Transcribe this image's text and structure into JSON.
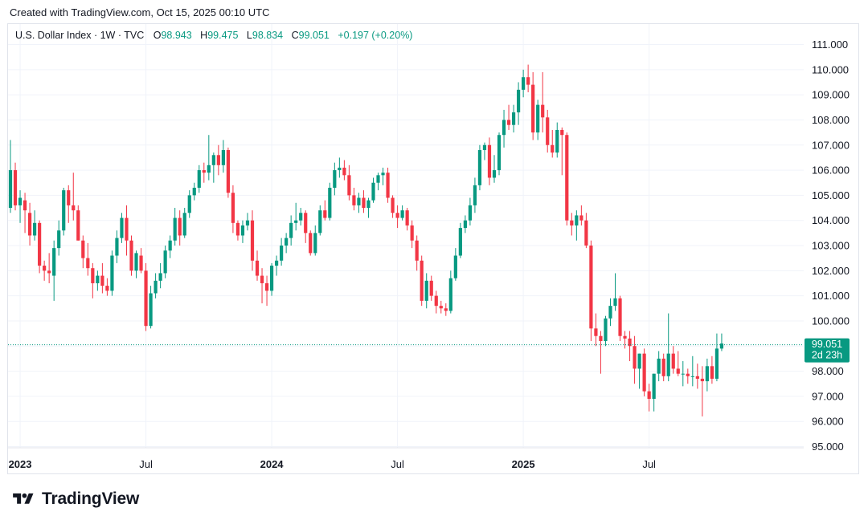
{
  "header": {
    "created_text": "Created with TradingView.com, Oct 15, 2025 00:10 UTC"
  },
  "legend": {
    "title": "U.S. Dollar Index · 1W · TVC",
    "o_label": "O",
    "o_value": "98.943",
    "h_label": "H",
    "h_value": "99.475",
    "l_label": "L",
    "l_value": "98.834",
    "c_label": "C",
    "c_value": "99.051",
    "change": "+0.197 (+0.20%)"
  },
  "price_badge": {
    "price": "99.051",
    "countdown": "2d 23h"
  },
  "footer": {
    "brand": "TradingView"
  },
  "colors": {
    "up": "#089981",
    "down": "#f23645",
    "grid": "#f0f3fa",
    "text": "#131722"
  },
  "chart_data": {
    "type": "candlestick",
    "title": "U.S. Dollar Index · 1W · TVC",
    "ylim": [
      94.3,
      111.7
    ],
    "y_ticks": [
      "95.000",
      "96.000",
      "97.000",
      "98.000",
      "100.000",
      "101.000",
      "102.000",
      "103.000",
      "104.000",
      "105.000",
      "106.000",
      "107.000",
      "108.000",
      "109.000",
      "110.000",
      "111.000"
    ],
    "x_ticks": [
      {
        "label": "2023",
        "bold": true,
        "index": 2
      },
      {
        "label": "Jul",
        "bold": false,
        "index": 28
      },
      {
        "label": "2024",
        "bold": true,
        "index": 54
      },
      {
        "label": "Jul",
        "bold": false,
        "index": 80
      },
      {
        "label": "2025",
        "bold": true,
        "index": 106
      },
      {
        "label": "Jul",
        "bold": false,
        "index": 132
      }
    ],
    "last_close": 99.051,
    "candles": [
      {
        "o": 104.5,
        "h": 107.2,
        "l": 104.3,
        "c": 106.0
      },
      {
        "o": 106.0,
        "h": 106.3,
        "l": 104.4,
        "c": 104.6
      },
      {
        "o": 104.6,
        "h": 105.2,
        "l": 103.9,
        "c": 104.9
      },
      {
        "o": 104.8,
        "h": 105.1,
        "l": 103.5,
        "c": 104.4
      },
      {
        "o": 104.3,
        "h": 104.7,
        "l": 103.0,
        "c": 103.4
      },
      {
        "o": 103.4,
        "h": 104.4,
        "l": 103.2,
        "c": 103.9
      },
      {
        "o": 103.9,
        "h": 104.0,
        "l": 101.9,
        "c": 102.2
      },
      {
        "o": 102.2,
        "h": 102.4,
        "l": 101.6,
        "c": 102.0
      },
      {
        "o": 102.0,
        "h": 102.7,
        "l": 101.5,
        "c": 101.9
      },
      {
        "o": 101.8,
        "h": 103.2,
        "l": 100.8,
        "c": 102.9
      },
      {
        "o": 102.9,
        "h": 104.0,
        "l": 102.6,
        "c": 103.6
      },
      {
        "o": 103.6,
        "h": 105.3,
        "l": 103.4,
        "c": 105.2
      },
      {
        "o": 105.2,
        "h": 105.4,
        "l": 103.9,
        "c": 104.6
      },
      {
        "o": 104.6,
        "h": 105.9,
        "l": 104.0,
        "c": 104.4
      },
      {
        "o": 104.4,
        "h": 104.6,
        "l": 103.2,
        "c": 103.2
      },
      {
        "o": 103.2,
        "h": 103.4,
        "l": 102.1,
        "c": 102.5
      },
      {
        "o": 102.5,
        "h": 103.1,
        "l": 101.8,
        "c": 102.1
      },
      {
        "o": 102.1,
        "h": 102.3,
        "l": 100.9,
        "c": 101.5
      },
      {
        "o": 101.5,
        "h": 102.0,
        "l": 101.2,
        "c": 101.8
      },
      {
        "o": 101.8,
        "h": 102.3,
        "l": 101.1,
        "c": 101.4
      },
      {
        "o": 101.4,
        "h": 101.7,
        "l": 101.0,
        "c": 101.2
      },
      {
        "o": 101.2,
        "h": 102.8,
        "l": 101.0,
        "c": 102.6
      },
      {
        "o": 102.6,
        "h": 103.6,
        "l": 102.3,
        "c": 103.3
      },
      {
        "o": 103.3,
        "h": 104.3,
        "l": 103.1,
        "c": 104.1
      },
      {
        "o": 104.1,
        "h": 104.6,
        "l": 102.6,
        "c": 103.2
      },
      {
        "o": 103.2,
        "h": 103.4,
        "l": 101.8,
        "c": 102.0
      },
      {
        "o": 102.0,
        "h": 102.8,
        "l": 101.7,
        "c": 102.7
      },
      {
        "o": 102.6,
        "h": 102.9,
        "l": 101.9,
        "c": 102.0
      },
      {
        "o": 102.0,
        "h": 102.3,
        "l": 99.6,
        "c": 99.8
      },
      {
        "o": 99.8,
        "h": 101.4,
        "l": 99.7,
        "c": 101.1
      },
      {
        "o": 101.1,
        "h": 101.9,
        "l": 100.9,
        "c": 101.6
      },
      {
        "o": 101.6,
        "h": 102.3,
        "l": 101.3,
        "c": 101.9
      },
      {
        "o": 101.9,
        "h": 103.0,
        "l": 101.7,
        "c": 102.8
      },
      {
        "o": 102.8,
        "h": 103.4,
        "l": 102.5,
        "c": 103.2
      },
      {
        "o": 103.2,
        "h": 104.5,
        "l": 103.0,
        "c": 104.1
      },
      {
        "o": 104.1,
        "h": 104.4,
        "l": 103.0,
        "c": 103.4
      },
      {
        "o": 103.4,
        "h": 104.5,
        "l": 103.3,
        "c": 104.3
      },
      {
        "o": 104.3,
        "h": 105.2,
        "l": 104.1,
        "c": 105.0
      },
      {
        "o": 105.0,
        "h": 105.5,
        "l": 104.8,
        "c": 105.3
      },
      {
        "o": 105.3,
        "h": 106.2,
        "l": 105.1,
        "c": 106.0
      },
      {
        "o": 106.0,
        "h": 106.3,
        "l": 105.5,
        "c": 105.9
      },
      {
        "o": 105.9,
        "h": 107.4,
        "l": 105.6,
        "c": 106.2
      },
      {
        "o": 106.2,
        "h": 106.7,
        "l": 105.5,
        "c": 106.6
      },
      {
        "o": 106.6,
        "h": 107.0,
        "l": 105.8,
        "c": 106.2
      },
      {
        "o": 106.2,
        "h": 107.2,
        "l": 105.9,
        "c": 106.8
      },
      {
        "o": 106.8,
        "h": 106.9,
        "l": 104.9,
        "c": 105.1
      },
      {
        "o": 105.1,
        "h": 105.4,
        "l": 103.5,
        "c": 103.9
      },
      {
        "o": 103.9,
        "h": 104.0,
        "l": 103.2,
        "c": 103.4
      },
      {
        "o": 103.4,
        "h": 104.0,
        "l": 103.1,
        "c": 103.8
      },
      {
        "o": 103.8,
        "h": 104.3,
        "l": 103.6,
        "c": 104.0
      },
      {
        "o": 104.0,
        "h": 104.4,
        "l": 102.0,
        "c": 102.4
      },
      {
        "o": 102.4,
        "h": 102.8,
        "l": 101.6,
        "c": 101.8
      },
      {
        "o": 101.8,
        "h": 102.1,
        "l": 100.7,
        "c": 101.5
      },
      {
        "o": 101.5,
        "h": 101.8,
        "l": 100.6,
        "c": 101.2
      },
      {
        "o": 101.2,
        "h": 102.3,
        "l": 101.0,
        "c": 102.2
      },
      {
        "o": 102.2,
        "h": 102.6,
        "l": 101.8,
        "c": 102.4
      },
      {
        "o": 102.4,
        "h": 103.3,
        "l": 102.2,
        "c": 103.0
      },
      {
        "o": 103.0,
        "h": 103.5,
        "l": 102.7,
        "c": 103.3
      },
      {
        "o": 103.3,
        "h": 104.2,
        "l": 103.0,
        "c": 103.9
      },
      {
        "o": 103.9,
        "h": 104.7,
        "l": 103.6,
        "c": 104.0
      },
      {
        "o": 104.0,
        "h": 104.5,
        "l": 103.8,
        "c": 104.3
      },
      {
        "o": 104.3,
        "h": 104.4,
        "l": 103.1,
        "c": 103.5
      },
      {
        "o": 103.5,
        "h": 103.6,
        "l": 102.6,
        "c": 102.7
      },
      {
        "o": 102.7,
        "h": 103.8,
        "l": 102.6,
        "c": 103.5
      },
      {
        "o": 103.5,
        "h": 104.6,
        "l": 103.4,
        "c": 104.4
      },
      {
        "o": 104.4,
        "h": 104.8,
        "l": 104.0,
        "c": 104.1
      },
      {
        "o": 104.1,
        "h": 105.5,
        "l": 104.0,
        "c": 105.3
      },
      {
        "o": 105.3,
        "h": 106.3,
        "l": 105.0,
        "c": 106.0
      },
      {
        "o": 106.0,
        "h": 106.5,
        "l": 105.7,
        "c": 106.1
      },
      {
        "o": 106.1,
        "h": 106.4,
        "l": 105.6,
        "c": 105.8
      },
      {
        "o": 105.8,
        "h": 106.2,
        "l": 104.8,
        "c": 105.0
      },
      {
        "o": 105.0,
        "h": 105.3,
        "l": 104.4,
        "c": 104.6
      },
      {
        "o": 104.6,
        "h": 105.1,
        "l": 104.3,
        "c": 104.9
      },
      {
        "o": 104.9,
        "h": 105.2,
        "l": 104.3,
        "c": 104.5
      },
      {
        "o": 104.5,
        "h": 104.9,
        "l": 104.1,
        "c": 104.8
      },
      {
        "o": 104.8,
        "h": 105.7,
        "l": 104.7,
        "c": 105.5
      },
      {
        "o": 105.5,
        "h": 105.9,
        "l": 105.2,
        "c": 105.8
      },
      {
        "o": 105.8,
        "h": 106.1,
        "l": 105.4,
        "c": 105.9
      },
      {
        "o": 105.9,
        "h": 106.1,
        "l": 104.7,
        "c": 104.9
      },
      {
        "o": 104.9,
        "h": 105.0,
        "l": 104.1,
        "c": 104.3
      },
      {
        "o": 104.3,
        "h": 104.6,
        "l": 103.7,
        "c": 104.1
      },
      {
        "o": 104.1,
        "h": 104.6,
        "l": 104.0,
        "c": 104.4
      },
      {
        "o": 104.4,
        "h": 104.5,
        "l": 103.6,
        "c": 103.8
      },
      {
        "o": 103.8,
        "h": 104.0,
        "l": 102.9,
        "c": 103.2
      },
      {
        "o": 103.2,
        "h": 103.4,
        "l": 102.0,
        "c": 102.4
      },
      {
        "o": 102.4,
        "h": 102.6,
        "l": 100.6,
        "c": 100.8
      },
      {
        "o": 100.8,
        "h": 101.9,
        "l": 100.5,
        "c": 101.6
      },
      {
        "o": 101.6,
        "h": 101.8,
        "l": 100.8,
        "c": 101.0
      },
      {
        "o": 101.0,
        "h": 101.2,
        "l": 100.3,
        "c": 100.6
      },
      {
        "o": 100.6,
        "h": 100.8,
        "l": 100.3,
        "c": 100.5
      },
      {
        "o": 100.5,
        "h": 100.7,
        "l": 100.2,
        "c": 100.4
      },
      {
        "o": 100.4,
        "h": 102.0,
        "l": 100.3,
        "c": 101.7
      },
      {
        "o": 101.7,
        "h": 102.9,
        "l": 101.6,
        "c": 102.6
      },
      {
        "o": 102.6,
        "h": 103.9,
        "l": 102.5,
        "c": 103.7
      },
      {
        "o": 103.7,
        "h": 104.2,
        "l": 103.5,
        "c": 104.0
      },
      {
        "o": 104.0,
        "h": 104.9,
        "l": 103.8,
        "c": 104.6
      },
      {
        "o": 104.6,
        "h": 105.7,
        "l": 104.3,
        "c": 105.4
      },
      {
        "o": 105.4,
        "h": 107.0,
        "l": 105.2,
        "c": 106.8
      },
      {
        "o": 106.8,
        "h": 107.1,
        "l": 106.4,
        "c": 107.0
      },
      {
        "o": 107.0,
        "h": 107.3,
        "l": 105.4,
        "c": 105.7
      },
      {
        "o": 105.7,
        "h": 106.6,
        "l": 105.5,
        "c": 106.0
      },
      {
        "o": 106.0,
        "h": 107.5,
        "l": 105.8,
        "c": 107.4
      },
      {
        "o": 107.4,
        "h": 108.4,
        "l": 106.9,
        "c": 108.0
      },
      {
        "o": 108.0,
        "h": 108.6,
        "l": 107.6,
        "c": 107.8
      },
      {
        "o": 107.8,
        "h": 108.6,
        "l": 107.5,
        "c": 108.3
      },
      {
        "o": 108.3,
        "h": 109.5,
        "l": 107.8,
        "c": 109.2
      },
      {
        "o": 109.2,
        "h": 110.0,
        "l": 108.9,
        "c": 109.7
      },
      {
        "o": 109.7,
        "h": 110.2,
        "l": 109.1,
        "c": 109.4
      },
      {
        "o": 109.4,
        "h": 109.9,
        "l": 107.2,
        "c": 107.5
      },
      {
        "o": 107.5,
        "h": 108.8,
        "l": 107.2,
        "c": 108.6
      },
      {
        "o": 108.6,
        "h": 109.9,
        "l": 107.5,
        "c": 108.1
      },
      {
        "o": 108.1,
        "h": 108.4,
        "l": 106.7,
        "c": 107.0
      },
      {
        "o": 107.0,
        "h": 107.6,
        "l": 106.5,
        "c": 106.7
      },
      {
        "o": 106.7,
        "h": 107.9,
        "l": 106.5,
        "c": 107.6
      },
      {
        "o": 107.6,
        "h": 107.7,
        "l": 105.8,
        "c": 107.4
      },
      {
        "o": 107.4,
        "h": 107.5,
        "l": 103.8,
        "c": 104.0
      },
      {
        "o": 104.0,
        "h": 104.3,
        "l": 103.4,
        "c": 103.8
      },
      {
        "o": 103.8,
        "h": 104.4,
        "l": 103.2,
        "c": 104.2
      },
      {
        "o": 104.2,
        "h": 104.6,
        "l": 103.8,
        "c": 104.0
      },
      {
        "o": 104.0,
        "h": 104.3,
        "l": 102.9,
        "c": 103.0
      },
      {
        "o": 103.0,
        "h": 103.2,
        "l": 99.2,
        "c": 99.7
      },
      {
        "o": 99.7,
        "h": 100.3,
        "l": 99.0,
        "c": 99.4
      },
      {
        "o": 99.4,
        "h": 99.6,
        "l": 97.9,
        "c": 99.2
      },
      {
        "o": 99.2,
        "h": 100.2,
        "l": 99.0,
        "c": 100.1
      },
      {
        "o": 100.1,
        "h": 100.9,
        "l": 99.8,
        "c": 100.6
      },
      {
        "o": 100.6,
        "h": 101.9,
        "l": 100.4,
        "c": 100.9
      },
      {
        "o": 100.9,
        "h": 101.0,
        "l": 99.2,
        "c": 99.4
      },
      {
        "o": 99.4,
        "h": 99.6,
        "l": 98.9,
        "c": 99.3
      },
      {
        "o": 99.3,
        "h": 99.6,
        "l": 98.4,
        "c": 99.0
      },
      {
        "o": 99.0,
        "h": 99.4,
        "l": 97.5,
        "c": 98.1
      },
      {
        "o": 98.1,
        "h": 98.7,
        "l": 97.3,
        "c": 98.7
      },
      {
        "o": 98.7,
        "h": 98.9,
        "l": 97.0,
        "c": 97.2
      },
      {
        "o": 97.2,
        "h": 97.5,
        "l": 96.4,
        "c": 96.9
      },
      {
        "o": 96.9,
        "h": 97.9,
        "l": 96.4,
        "c": 97.9
      },
      {
        "o": 97.9,
        "h": 98.8,
        "l": 97.6,
        "c": 98.5
      },
      {
        "o": 98.5,
        "h": 98.7,
        "l": 97.6,
        "c": 97.8
      },
      {
        "o": 97.8,
        "h": 100.3,
        "l": 97.6,
        "c": 98.7
      },
      {
        "o": 98.7,
        "h": 99.0,
        "l": 97.9,
        "c": 98.1
      },
      {
        "o": 98.1,
        "h": 98.8,
        "l": 97.8,
        "c": 97.9
      },
      {
        "o": 97.9,
        "h": 98.4,
        "l": 97.4,
        "c": 97.9
      },
      {
        "o": 97.9,
        "h": 98.1,
        "l": 97.5,
        "c": 97.8
      },
      {
        "o": 97.8,
        "h": 98.6,
        "l": 97.4,
        "c": 97.8
      },
      {
        "o": 97.8,
        "h": 98.3,
        "l": 97.3,
        "c": 97.7
      },
      {
        "o": 97.7,
        "h": 98.2,
        "l": 96.2,
        "c": 97.6
      },
      {
        "o": 97.6,
        "h": 98.5,
        "l": 97.2,
        "c": 98.2
      },
      {
        "o": 98.2,
        "h": 98.6,
        "l": 97.5,
        "c": 97.7
      },
      {
        "o": 97.7,
        "h": 99.5,
        "l": 97.6,
        "c": 98.9
      },
      {
        "o": 98.9,
        "h": 99.5,
        "l": 98.8,
        "c": 99.1
      }
    ]
  }
}
